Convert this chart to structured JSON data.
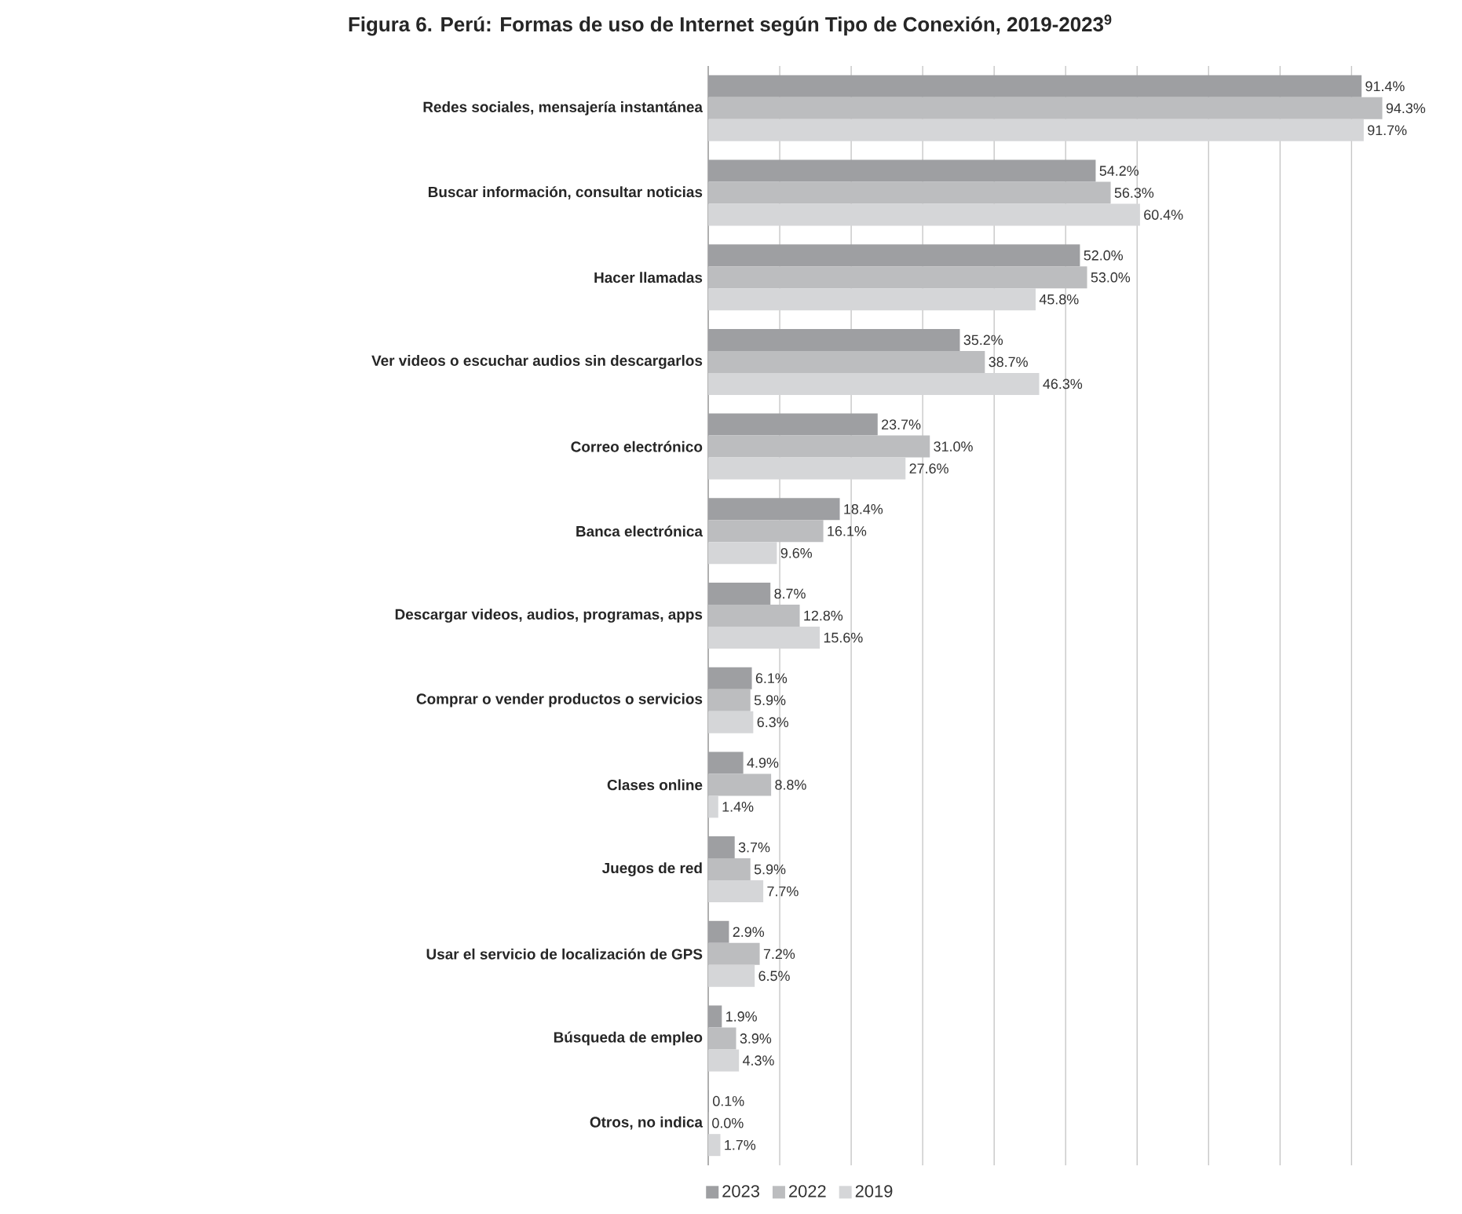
{
  "chart_data": {
    "type": "bar",
    "orientation": "horizontal",
    "title": "Figura 6. Perú: Formas de uso de Internet según Tipo de Conexión, 2019-2023$^{9}$",
    "categories": [
      "Redes sociales, mensajería instantánea",
      "Buscar información, consultar noticias",
      "Hacer llamadas",
      "Ver videos o escuchar audios sin descargarlos",
      "Correo electrónico",
      "Banca electrónica",
      "Descargar videos, audios, programas, apps",
      "Comprar o vender productos o servicios",
      "Clases online",
      "Juegos de red",
      "Usar el servicio de localización de GPS",
      "Búsqueda de empleo",
      "Otros, no indica"
    ],
    "series": [
      {
        "name": "2023",
        "color": "#9e9fa2",
        "values": [
          91.4,
          54.2,
          52.0,
          35.2,
          23.7,
          18.4,
          8.7,
          6.1,
          4.9,
          3.7,
          2.9,
          1.9,
          0.1
        ],
        "value_labels": [
          "91.4%",
          "54.2%",
          "52.0%",
          "35.2%",
          "23.7%",
          "18.4%",
          "8.7%",
          "6.1%",
          "4.9%",
          "3.7%",
          "2.9%",
          "1.9%",
          "0.1%"
        ]
      },
      {
        "name": "2022",
        "color": "#bcbdbf",
        "values": [
          94.3,
          56.3,
          53.0,
          38.7,
          31.0,
          16.1,
          12.8,
          5.9,
          8.8,
          5.9,
          7.2,
          3.9,
          0.0
        ],
        "value_labels": [
          "94.3%",
          "56.3%",
          "53.0%",
          "38.7%",
          "31.0%",
          "16.1%",
          "12.8%",
          "5.9%",
          "8.8%",
          "5.9%",
          "7.2%",
          "3.9%",
          "0.0%"
        ]
      },
      {
        "name": "2019",
        "color": "#d5d6d8",
        "values": [
          91.7,
          60.4,
          45.8,
          46.3,
          27.6,
          9.6,
          15.6,
          6.3,
          1.4,
          7.7,
          6.5,
          4.3,
          1.7
        ],
        "value_labels": [
          "91.7%",
          "60.4%",
          "45.8%",
          "46.3%",
          "27.6%",
          "9.6%",
          "15.6%",
          "6.3%",
          "1.4%",
          "7.7%",
          "6.5%",
          "4.3%",
          "1.7%"
        ]
      }
    ],
    "tick_labels": "y",
    "grid": "x",
    "legend": "bottom"
  }
}
